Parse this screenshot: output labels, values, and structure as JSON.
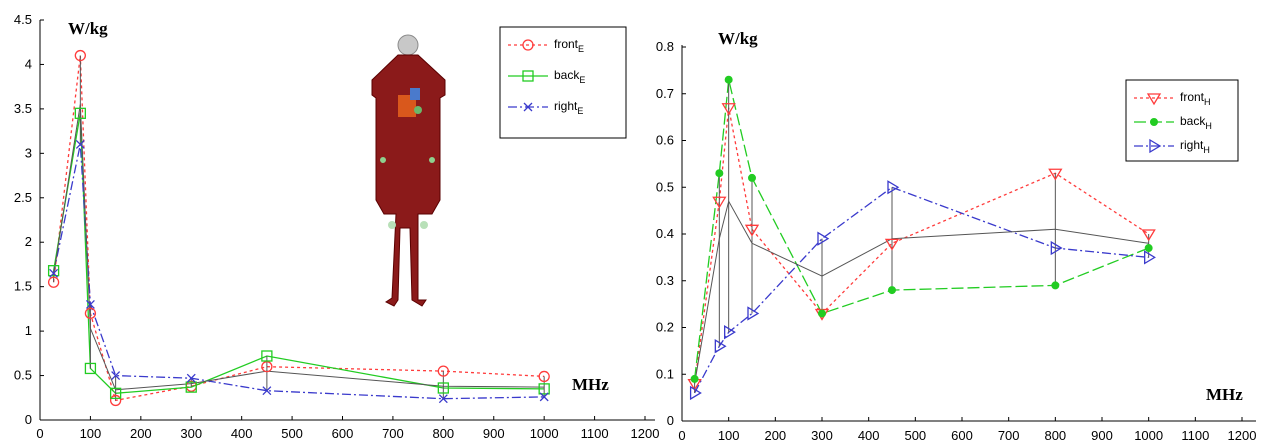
{
  "chart_data": [
    {
      "type": "line",
      "ylabel": "W/kg",
      "xlabel": "MHz",
      "xlim": [
        0,
        1200
      ],
      "ylim": [
        0,
        4.5
      ],
      "xticks": [
        0,
        100,
        200,
        300,
        400,
        500,
        600,
        700,
        800,
        900,
        1000,
        1100,
        1200
      ],
      "yticks": [
        0,
        0.5,
        1,
        1.5,
        2,
        2.5,
        3,
        3.5,
        4,
        4.5
      ],
      "grid": false,
      "legend_position": "top-right",
      "inset_image": "human-body-model",
      "series": [
        {
          "name": "front",
          "sub": "E",
          "color": "#ff3b3b",
          "dash": "3,3",
          "marker": "circle",
          "points": [
            [
              27,
              1.55
            ],
            [
              80,
              4.1
            ],
            [
              100,
              1.2
            ],
            [
              150,
              0.22
            ],
            [
              300,
              0.38
            ],
            [
              450,
              0.6
            ],
            [
              800,
              0.55
            ],
            [
              1000,
              0.49
            ]
          ]
        },
        {
          "name": "back",
          "sub": "E",
          "color": "#22cc22",
          "dash": "",
          "marker": "square",
          "points": [
            [
              27,
              1.68
            ],
            [
              80,
              3.45
            ],
            [
              100,
              0.58
            ],
            [
              150,
              0.3
            ],
            [
              300,
              0.37
            ],
            [
              450,
              0.72
            ],
            [
              800,
              0.36
            ],
            [
              1000,
              0.35
            ]
          ]
        },
        {
          "name": "right",
          "sub": "E",
          "color": "#3a3acc",
          "dash": "9,3,2,3",
          "marker": "x",
          "points": [
            [
              27,
              1.65
            ],
            [
              80,
              3.1
            ],
            [
              100,
              1.3
            ],
            [
              150,
              0.5
            ],
            [
              300,
              0.47
            ],
            [
              450,
              0.33
            ],
            [
              800,
              0.24
            ],
            [
              1000,
              0.26
            ]
          ]
        },
        {
          "name": "",
          "sub": "",
          "color": "#555555",
          "dash": "",
          "marker": "none",
          "points": [
            [
              27,
              1.63
            ],
            [
              80,
              3.55
            ],
            [
              100,
              1.03
            ],
            [
              150,
              0.34
            ],
            [
              300,
              0.41
            ],
            [
              450,
              0.55
            ],
            [
              800,
              0.38
            ],
            [
              1000,
              0.37
            ]
          ]
        }
      ],
      "ranges": [
        {
          "x": 27,
          "low": 1.55,
          "high": 1.68
        },
        {
          "x": 80,
          "low": 3.1,
          "high": 4.1
        },
        {
          "x": 100,
          "low": 0.58,
          "high": 1.3
        },
        {
          "x": 150,
          "low": 0.22,
          "high": 0.5
        },
        {
          "x": 300,
          "low": 0.37,
          "high": 0.47
        },
        {
          "x": 450,
          "low": 0.33,
          "high": 0.72
        },
        {
          "x": 800,
          "low": 0.24,
          "high": 0.55
        },
        {
          "x": 1000,
          "low": 0.26,
          "high": 0.49
        }
      ]
    },
    {
      "type": "line",
      "ylabel": "W/kg",
      "xlabel": "MHz",
      "xlim": [
        0,
        1200
      ],
      "ylim": [
        0,
        0.8
      ],
      "xticks": [
        0,
        100,
        200,
        300,
        400,
        500,
        600,
        700,
        800,
        900,
        1000,
        1100,
        1200
      ],
      "yticks": [
        0,
        0.1,
        0.2,
        0.3,
        0.4,
        0.5,
        0.6,
        0.7,
        0.8
      ],
      "grid": false,
      "legend_position": "top-right",
      "series": [
        {
          "name": "front",
          "sub": "H",
          "color": "#ff3b3b",
          "dash": "3,3",
          "marker": "triangle-down",
          "points": [
            [
              27,
              0.08
            ],
            [
              80,
              0.47
            ],
            [
              100,
              0.67
            ],
            [
              150,
              0.41
            ],
            [
              300,
              0.23
            ],
            [
              450,
              0.38
            ],
            [
              800,
              0.53
            ],
            [
              1000,
              0.4
            ]
          ]
        },
        {
          "name": "back",
          "sub": "H",
          "color": "#22cc22",
          "dash": "12,4",
          "marker": "dot",
          "points": [
            [
              27,
              0.09
            ],
            [
              80,
              0.53
            ],
            [
              100,
              0.73
            ],
            [
              150,
              0.52
            ],
            [
              300,
              0.23
            ],
            [
              450,
              0.28
            ],
            [
              800,
              0.29
            ],
            [
              1000,
              0.37
            ]
          ]
        },
        {
          "name": "right",
          "sub": "H",
          "color": "#3a3acc",
          "dash": "9,3,2,3",
          "marker": "triangle-right",
          "points": [
            [
              27,
              0.06
            ],
            [
              80,
              0.16
            ],
            [
              100,
              0.19
            ],
            [
              150,
              0.23
            ],
            [
              300,
              0.39
            ],
            [
              450,
              0.5
            ],
            [
              800,
              0.37
            ],
            [
              1000,
              0.35
            ]
          ]
        },
        {
          "name": "",
          "sub": "",
          "color": "#555555",
          "dash": "",
          "marker": "none",
          "points": [
            [
              27,
              0.08
            ],
            [
              80,
              0.39
            ],
            [
              100,
              0.47
            ],
            [
              150,
              0.38
            ],
            [
              300,
              0.31
            ],
            [
              450,
              0.39
            ],
            [
              800,
              0.41
            ],
            [
              1000,
              0.38
            ]
          ]
        }
      ],
      "ranges": [
        {
          "x": 27,
          "low": 0.06,
          "high": 0.09
        },
        {
          "x": 80,
          "low": 0.16,
          "high": 0.53
        },
        {
          "x": 100,
          "low": 0.19,
          "high": 0.73
        },
        {
          "x": 150,
          "low": 0.23,
          "high": 0.52
        },
        {
          "x": 300,
          "low": 0.23,
          "high": 0.39
        },
        {
          "x": 450,
          "low": 0.28,
          "high": 0.5
        },
        {
          "x": 800,
          "low": 0.29,
          "high": 0.53
        },
        {
          "x": 1000,
          "low": 0.35,
          "high": 0.4
        }
      ]
    }
  ]
}
